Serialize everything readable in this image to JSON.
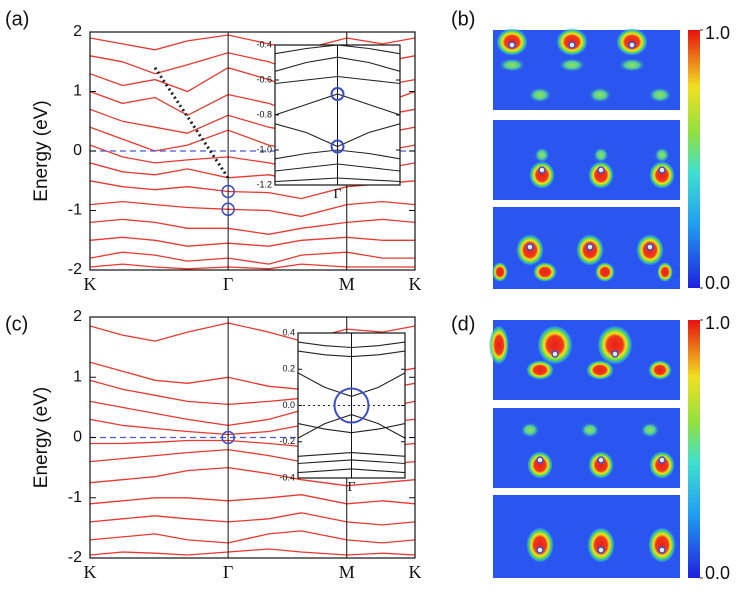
{
  "panel_labels": [
    "(a)",
    "(b)",
    "(c)",
    "(d)"
  ],
  "chart_data": [
    {
      "type": "line",
      "ylabel": "Energy (eV)",
      "x": [
        0,
        0.1,
        0.2,
        0.3,
        0.425,
        0.55,
        0.65,
        0.79,
        0.9,
        1
      ],
      "xlim": [
        0,
        1
      ],
      "xticks": [
        {
          "value": 0,
          "label": "K"
        },
        {
          "value": 0.425,
          "label": "Γ"
        },
        {
          "value": 0.79,
          "label": "M"
        },
        {
          "value": 1,
          "label": "K"
        }
      ],
      "ylim": [
        -2,
        2
      ],
      "yticks": [
        -2,
        -1,
        0,
        1,
        2
      ],
      "series": [
        {
          "color": "#e8382f",
          "values": [
            1.9,
            1.8,
            1.7,
            1.85,
            1.95,
            1.8,
            1.7,
            1.9,
            1.8,
            1.9
          ]
        },
        {
          "color": "#e8382f",
          "values": [
            1.6,
            1.5,
            1.3,
            1.45,
            1.65,
            1.5,
            1.3,
            1.55,
            1.5,
            1.6
          ]
        },
        {
          "color": "#e8382f",
          "values": [
            1.3,
            1.1,
            1.2,
            1.0,
            1.4,
            1.2,
            1.0,
            1.25,
            1.1,
            1.2
          ]
        },
        {
          "color": "#e8382f",
          "values": [
            1.0,
            0.8,
            0.9,
            0.6,
            0.95,
            0.8,
            0.6,
            0.9,
            0.8,
            1.0
          ]
        },
        {
          "color": "#e8382f",
          "values": [
            0.7,
            0.5,
            0.4,
            0.3,
            0.6,
            0.4,
            0.3,
            0.55,
            0.6,
            0.7
          ]
        },
        {
          "color": "#e8382f",
          "values": [
            0.4,
            0.2,
            0.0,
            0.1,
            0.35,
            0.1,
            0.0,
            0.2,
            0.3,
            0.4
          ]
        },
        {
          "color": "#e8382f",
          "values": [
            0.1,
            -0.1,
            -0.2,
            -0.15,
            -0.1,
            -0.2,
            -0.3,
            -0.1,
            0.0,
            0.1
          ]
        },
        {
          "color": "#e8382f",
          "values": [
            -0.2,
            -0.35,
            -0.4,
            -0.3,
            -0.45,
            -0.4,
            -0.5,
            -0.35,
            -0.3,
            -0.2
          ]
        },
        {
          "color": "#e8382f",
          "values": [
            -0.5,
            -0.6,
            -0.65,
            -0.6,
            -0.68,
            -0.7,
            -0.8,
            -0.6,
            -0.55,
            -0.5
          ]
        },
        {
          "color": "#e8382f",
          "values": [
            -0.9,
            -0.85,
            -0.9,
            -0.95,
            -0.98,
            -1.0,
            -1.1,
            -0.9,
            -0.85,
            -0.9
          ]
        },
        {
          "color": "#e8382f",
          "values": [
            -1.2,
            -1.15,
            -1.2,
            -1.3,
            -1.3,
            -1.4,
            -1.3,
            -1.2,
            -1.15,
            -1.2
          ]
        },
        {
          "color": "#e8382f",
          "values": [
            -1.5,
            -1.45,
            -1.5,
            -1.6,
            -1.55,
            -1.6,
            -1.5,
            -1.45,
            -1.5,
            -1.5
          ]
        },
        {
          "color": "#e8382f",
          "values": [
            -1.8,
            -1.7,
            -1.75,
            -1.85,
            -1.8,
            -1.9,
            -1.75,
            -1.7,
            -1.8,
            -1.8
          ]
        },
        {
          "color": "#e8382f",
          "values": [
            -1.95,
            -1.9,
            -1.95,
            -1.98,
            -1.95,
            -1.98,
            -1.9,
            -1.95,
            -1.95,
            -1.95
          ]
        },
        {
          "color": "#4a5bd1",
          "style": "dashed",
          "x": [
            0,
            1
          ],
          "values": [
            0,
            0
          ]
        },
        {
          "color": "#222222",
          "style": "dotted",
          "x": [
            0.2,
            0.425
          ],
          "values": [
            1.4,
            -0.45
          ]
        }
      ],
      "circles": {
        "color": "#3a4fc4",
        "x": [
          0.425,
          0.425
        ],
        "y": [
          -0.68,
          -0.98
        ]
      }
    },
    {
      "type": "line",
      "x": [
        0,
        0.25,
        0.5,
        0.75,
        1
      ],
      "xlim": [
        0,
        1
      ],
      "xticks": [
        {
          "value": 0.5,
          "label": "Γ"
        }
      ],
      "ylim": [
        -1.2,
        -0.4
      ],
      "yticks": [
        -0.4,
        -0.6,
        -0.8,
        {
          "value": -1,
          "label": "-1.0"
        },
        -1.2
      ],
      "series": [
        {
          "color": "#222222",
          "values": [
            -0.45,
            -0.42,
            -0.4,
            -0.42,
            -0.45
          ]
        },
        {
          "color": "#222222",
          "values": [
            -0.55,
            -0.5,
            -0.47,
            -0.5,
            -0.55
          ]
        },
        {
          "color": "#222222",
          "values": [
            -0.62,
            -0.6,
            -0.58,
            -0.6,
            -0.62
          ]
        },
        {
          "color": "#222222",
          "values": [
            -0.8,
            -0.74,
            -0.68,
            -0.74,
            -0.8
          ]
        },
        {
          "color": "#222222",
          "values": [
            -0.85,
            -0.9,
            -0.98,
            -0.9,
            -0.85
          ]
        },
        {
          "color": "#222222",
          "values": [
            -1.05,
            -1.02,
            -1.0,
            -1.02,
            -1.05
          ]
        },
        {
          "color": "#222222",
          "values": [
            -1.12,
            -1.1,
            -1.08,
            -1.1,
            -1.12
          ]
        },
        {
          "color": "#222222",
          "values": [
            -1.18,
            -1.17,
            -1.16,
            -1.17,
            -1.18
          ]
        }
      ],
      "circles": {
        "color": "#3a4fc4",
        "x": [
          0.5,
          0.5
        ],
        "y": [
          -0.68,
          -0.98
        ]
      }
    },
    {
      "type": "line",
      "ylabel": "Energy (eV)",
      "x": [
        0,
        0.1,
        0.2,
        0.3,
        0.425,
        0.55,
        0.65,
        0.79,
        0.9,
        1
      ],
      "xlim": [
        0,
        1
      ],
      "xticks": [
        {
          "value": 0,
          "label": "K"
        },
        {
          "value": 0.425,
          "label": "Γ"
        },
        {
          "value": 0.79,
          "label": "M"
        },
        {
          "value": 1,
          "label": "K"
        }
      ],
      "ylim": [
        -2,
        2
      ],
      "yticks": [
        -2,
        -1,
        0,
        1,
        2
      ],
      "series": [
        {
          "color": "#e8382f",
          "values": [
            1.85,
            1.7,
            1.6,
            1.75,
            1.9,
            1.75,
            1.6,
            1.8,
            1.75,
            1.85
          ]
        },
        {
          "color": "#e8382f",
          "values": [
            1.25,
            1.1,
            0.95,
            0.9,
            1.0,
            0.85,
            0.8,
            0.95,
            1.05,
            1.15
          ]
        },
        {
          "color": "#e8382f",
          "values": [
            0.95,
            0.8,
            0.7,
            0.6,
            0.55,
            0.6,
            0.65,
            0.7,
            0.8,
            0.9
          ]
        },
        {
          "color": "#e8382f",
          "values": [
            0.6,
            0.5,
            0.4,
            0.3,
            0.2,
            0.3,
            0.45,
            0.55,
            0.5,
            0.6
          ]
        },
        {
          "color": "#e8382f",
          "values": [
            0.3,
            0.2,
            0.15,
            0.1,
            0.05,
            0.1,
            0.2,
            0.3,
            0.25,
            0.3
          ]
        },
        {
          "color": "#e8382f",
          "values": [
            -0.1,
            -0.1,
            -0.08,
            -0.05,
            -0.05,
            -0.1,
            -0.15,
            -0.2,
            -0.15,
            -0.1
          ]
        },
        {
          "color": "#e8382f",
          "values": [
            -0.4,
            -0.35,
            -0.3,
            -0.25,
            -0.2,
            -0.3,
            -0.4,
            -0.5,
            -0.45,
            -0.4
          ]
        },
        {
          "color": "#e8382f",
          "values": [
            -0.75,
            -0.7,
            -0.65,
            -0.55,
            -0.5,
            -0.6,
            -0.7,
            -0.8,
            -0.75,
            -0.7
          ]
        },
        {
          "color": "#e8382f",
          "values": [
            -1.1,
            -1.05,
            -1.0,
            -1.0,
            -1.05,
            -1.0,
            -0.95,
            -1.1,
            -1.05,
            -1.1
          ]
        },
        {
          "color": "#e8382f",
          "values": [
            -1.4,
            -1.35,
            -1.3,
            -1.35,
            -1.4,
            -1.35,
            -1.25,
            -1.4,
            -1.45,
            -1.4
          ]
        },
        {
          "color": "#e8382f",
          "values": [
            -1.7,
            -1.65,
            -1.6,
            -1.7,
            -1.75,
            -1.6,
            -1.55,
            -1.7,
            -1.75,
            -1.7
          ]
        },
        {
          "color": "#e8382f",
          "values": [
            -1.95,
            -1.9,
            -1.92,
            -1.95,
            -1.9,
            -1.85,
            -1.9,
            -1.95,
            -1.92,
            -1.95
          ]
        },
        {
          "color": "#4a5bd1",
          "style": "dashed",
          "x": [
            0,
            1
          ],
          "values": [
            0,
            0
          ]
        }
      ],
      "circles": {
        "color": "#3a4fc4",
        "x": [
          0.425
        ],
        "y": [
          0
        ]
      }
    },
    {
      "type": "line",
      "x": [
        0,
        0.25,
        0.5,
        0.75,
        1
      ],
      "xlim": [
        0,
        1
      ],
      "xticks": [
        {
          "value": 0.5,
          "label": "Γ"
        }
      ],
      "ylim": [
        -0.4,
        0.4
      ],
      "yticks": [
        0.4,
        0.2,
        {
          "value": 0,
          "label": "0.0"
        },
        -0.2,
        -0.4
      ],
      "series": [
        {
          "color": "#222222",
          "values": [
            0.35,
            0.33,
            0.32,
            0.33,
            0.35
          ]
        },
        {
          "color": "#222222",
          "values": [
            0.3,
            0.28,
            0.27,
            0.28,
            0.3
          ]
        },
        {
          "color": "#222222",
          "values": [
            0.18,
            0.1,
            0.05,
            0.1,
            0.18
          ]
        },
        {
          "color": "#222222",
          "values": [
            -0.18,
            -0.1,
            -0.05,
            -0.1,
            -0.18
          ]
        },
        {
          "color": "#222222",
          "values": [
            -0.1,
            -0.13,
            -0.15,
            -0.13,
            -0.1
          ]
        },
        {
          "color": "#222222",
          "values": [
            -0.28,
            -0.27,
            -0.26,
            -0.27,
            -0.28
          ]
        },
        {
          "color": "#222222",
          "values": [
            -0.32,
            -0.31,
            -0.3,
            -0.31,
            -0.32
          ]
        },
        {
          "color": "#222222",
          "values": [
            -0.37,
            -0.36,
            -0.35,
            -0.36,
            -0.37
          ]
        },
        {
          "color": "#222222",
          "style": "dotted",
          "x": [
            0,
            1
          ],
          "values": [
            0,
            0
          ]
        }
      ],
      "circles": {
        "color": "#3a4fc4",
        "x": [
          0.5
        ],
        "y": [
          0
        ]
      }
    }
  ],
  "colorbars": [
    {
      "ticks": [
        {
          "value": 1,
          "label": "1.0"
        },
        {
          "value": 0,
          "label": "0.0"
        }
      ]
    },
    {
      "ticks": [
        {
          "value": 1,
          "label": "1.0"
        },
        {
          "value": 0,
          "label": "0.0"
        }
      ]
    }
  ]
}
